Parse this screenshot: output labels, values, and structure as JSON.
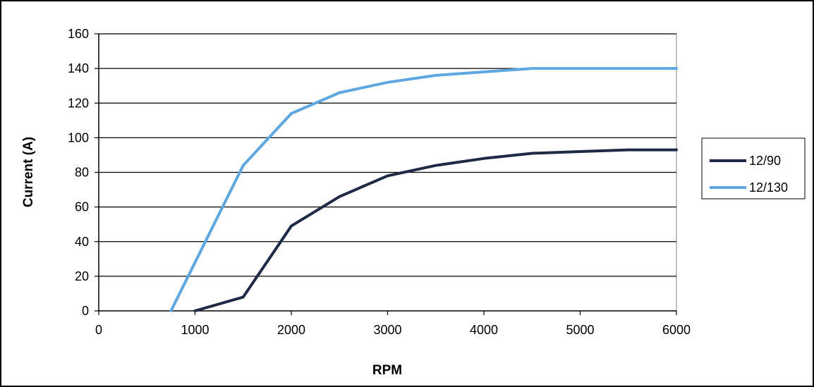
{
  "chart_data": {
    "type": "line",
    "title": "",
    "xlabel": "RPM",
    "ylabel": "Current (A)",
    "xlim": [
      0,
      6000
    ],
    "ylim": [
      0,
      160
    ],
    "xticks": [
      0,
      1000,
      2000,
      3000,
      4000,
      5000,
      6000
    ],
    "yticks": [
      0,
      20,
      40,
      60,
      80,
      100,
      120,
      140,
      160
    ],
    "grid": "horizontal",
    "legend": "right",
    "series": [
      {
        "name": "12/90",
        "color": "#1f2a44",
        "x": [
          1000,
          1500,
          2000,
          2500,
          3000,
          3500,
          4000,
          4500,
          5000,
          5500,
          6000
        ],
        "y": [
          0,
          8,
          49,
          66,
          78,
          84,
          88,
          91,
          92,
          93,
          93
        ]
      },
      {
        "name": "12/130",
        "color": "#5ea7e0",
        "x": [
          750,
          1500,
          2000,
          2500,
          3000,
          3500,
          4000,
          4500,
          5000,
          5500,
          6000
        ],
        "y": [
          0,
          84,
          114,
          126,
          132,
          136,
          138,
          140,
          140,
          140,
          140
        ]
      }
    ]
  }
}
